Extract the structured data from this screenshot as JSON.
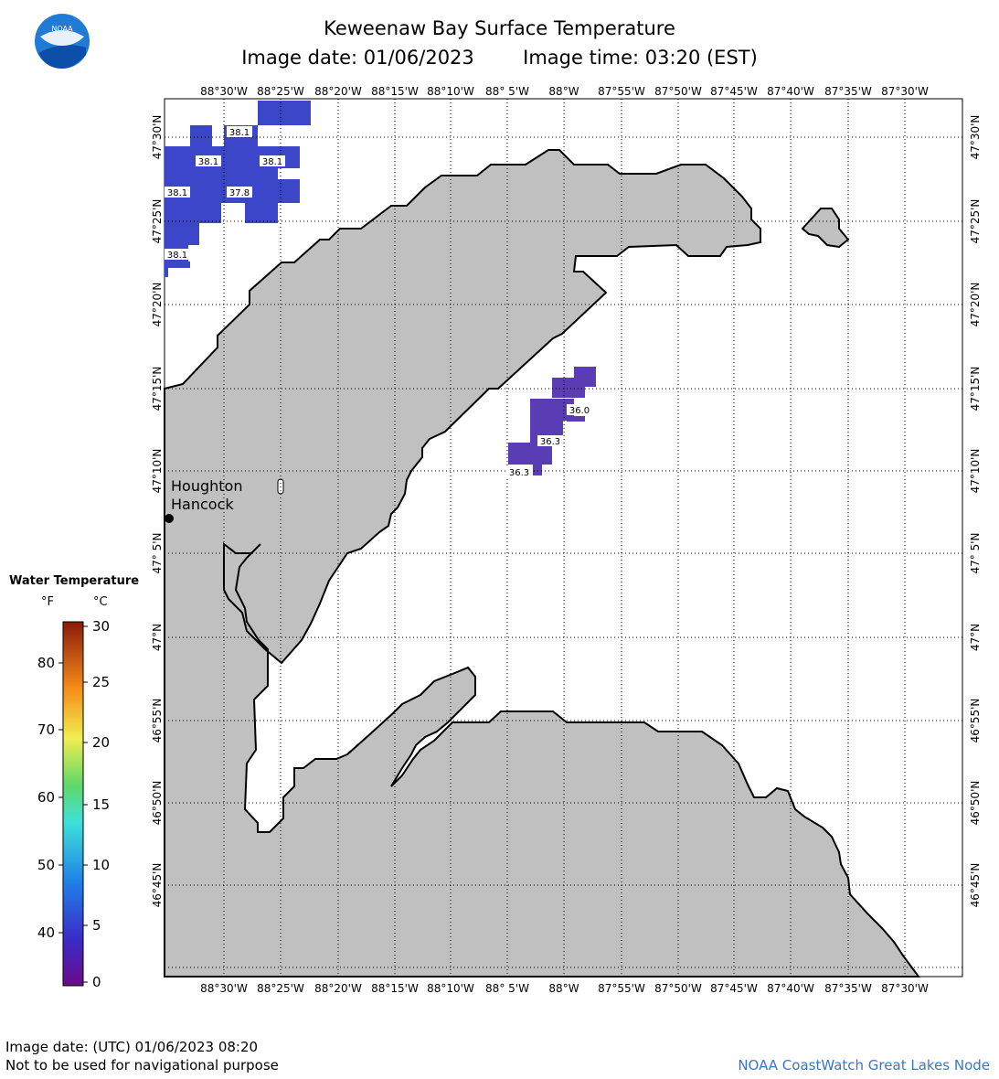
{
  "title": "Keweenaw Bay Surface Temperature",
  "image_date_label": "Image date: 01/06/2023",
  "image_time_label": "Image time: 03:20 (EST)",
  "lon_labels": [
    "88°30'W",
    "88°25'W",
    "88°20'W",
    "88°15'W",
    "88°10'W",
    "88° 5'W",
    "88°W",
    "87°55'W",
    "87°50'W",
    "87°45'W",
    "87°40'W",
    "87°35'W",
    "87°30'W"
  ],
  "lat_labels": [
    "47°30'N",
    "47°25'N",
    "47°20'N",
    "47°15'N",
    "47°10'N",
    "47° 5'N",
    "47°N",
    "46°55'N",
    "46°50'N",
    "46°45'N"
  ],
  "place_labels": [
    "Houghton",
    "Hancock"
  ],
  "temperature_labels": [
    {
      "text": "38.1",
      "group": "nw"
    },
    {
      "text": "38.1",
      "group": "nw"
    },
    {
      "text": "38.1",
      "group": "nw"
    },
    {
      "text": "38.1",
      "group": "nw"
    },
    {
      "text": "37.8",
      "group": "nw"
    },
    {
      "text": "38.1",
      "group": "nw"
    },
    {
      "text": "36.0",
      "group": "center"
    },
    {
      "text": "36.3",
      "group": "center"
    },
    {
      "text": "36.3",
      "group": "center"
    }
  ],
  "legend": {
    "title": "Water Temperature",
    "unit_f": "°F",
    "unit_c": "°C",
    "f_ticks": [
      "80",
      "70",
      "60",
      "50",
      "40"
    ],
    "c_ticks": [
      "30",
      "25",
      "20",
      "15",
      "10",
      "5",
      "0"
    ]
  },
  "footer": {
    "utc_date": "Image date: (UTC) 01/06/2023  08:20",
    "disclaimer": "Not to be used for navigational purpose",
    "credit": "NOAA CoastWatch Great Lakes Node"
  },
  "colors": {
    "land": "#c0c0c0",
    "water_cold_nw": "#3c46c8",
    "water_cold_center": "#5a3cb4",
    "logo_blue": "#1f7bd6",
    "credit_text": "#3a76c8"
  },
  "icons": [
    "noaa-logo",
    "city-marker"
  ]
}
